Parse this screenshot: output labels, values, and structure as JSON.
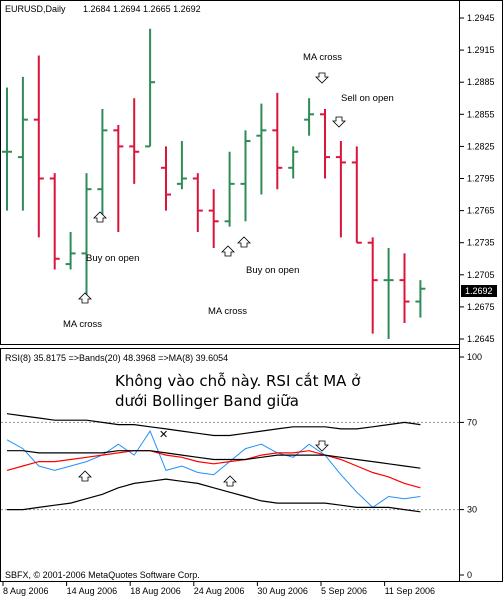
{
  "header": {
    "symbol": "EURUSD,Daily",
    "ohlc": "1.2684 1.2694 1.2665 1.2692"
  },
  "indicator": {
    "label": "RSI(8) 35.8175  =>Bands(20) 48.3968  =>MA(8) 39.6054"
  },
  "annotations": {
    "note_line1": "Không vào chỗ này. RSI cắt MA ở",
    "note_line2": "dưới Bollinger Band giữa",
    "ma_cross_1": "MA cross",
    "ma_cross_2": "MA cross",
    "ma_cross_3": "MA cross",
    "buy_on_open_1": "Buy on open",
    "buy_on_open_2": "Buy on open",
    "sell_on_open": "Sell on open"
  },
  "copyright": "SBFX, © 2001-2006 MetaQuotes Software Corp.",
  "colors": {
    "bull": "#2e8b57",
    "bear": "#dc143c",
    "rsi": "#1e90ff",
    "rsi_ma": "#ff0000",
    "bands": "#000000",
    "current_price_bg": "#000000"
  },
  "chart_data": [
    {
      "type": "ohlc",
      "title": "EURUSD,Daily",
      "current_price": "1.2692",
      "ylim": [
        1.2637,
        1.2955
      ],
      "y_ticks": [
        "1.2945",
        "1.2915",
        "1.2885",
        "1.2855",
        "1.2825",
        "1.2795",
        "1.2765",
        "1.2735",
        "1.2705",
        "1.2675",
        "1.2645"
      ],
      "x_ticks": [
        "8 Aug 2006",
        "14 Aug 2006",
        "18 Aug 2006",
        "24 Aug 2006",
        "30 Aug 2006",
        "5 Sep 2006",
        "11 Sep 2006"
      ],
      "bars": [
        {
          "o": 1.282,
          "h": 1.288,
          "l": 1.2765,
          "c": 1.282
        },
        {
          "o": 1.2815,
          "h": 1.289,
          "l": 1.2765,
          "c": 1.285
        },
        {
          "o": 1.285,
          "h": 1.291,
          "l": 1.274,
          "c": 1.2795
        },
        {
          "o": 1.2795,
          "h": 1.28,
          "l": 1.271,
          "c": 1.272
        },
        {
          "o": 1.2715,
          "h": 1.2745,
          "l": 1.271,
          "c": 1.2725
        },
        {
          "o": 1.2725,
          "h": 1.28,
          "l": 1.2685,
          "c": 1.2785
        },
        {
          "o": 1.2785,
          "h": 1.286,
          "l": 1.276,
          "c": 1.284
        },
        {
          "o": 1.284,
          "h": 1.2845,
          "l": 1.2745,
          "c": 1.2825
        },
        {
          "o": 1.2825,
          "h": 1.287,
          "l": 1.279,
          "c": 1.282
        },
        {
          "o": 1.2825,
          "h": 1.2935,
          "l": 1.2825,
          "c": 1.2885
        },
        {
          "o": 1.2805,
          "h": 1.2825,
          "l": 1.2765,
          "c": 1.278
        },
        {
          "o": 1.279,
          "h": 1.283,
          "l": 1.2785,
          "c": 1.2795
        },
        {
          "o": 1.2795,
          "h": 1.28,
          "l": 1.2745,
          "c": 1.2765
        },
        {
          "o": 1.2765,
          "h": 1.2785,
          "l": 1.273,
          "c": 1.2755
        },
        {
          "o": 1.2755,
          "h": 1.282,
          "l": 1.275,
          "c": 1.279
        },
        {
          "o": 1.279,
          "h": 1.284,
          "l": 1.2755,
          "c": 1.283
        },
        {
          "o": 1.2835,
          "h": 1.2865,
          "l": 1.278,
          "c": 1.284
        },
        {
          "o": 1.284,
          "h": 1.2875,
          "l": 1.2785,
          "c": 1.2805
        },
        {
          "o": 1.2805,
          "h": 1.2825,
          "l": 1.2795,
          "c": 1.282
        },
        {
          "o": 1.285,
          "h": 1.287,
          "l": 1.2835,
          "c": 1.2855
        },
        {
          "o": 1.2855,
          "h": 1.286,
          "l": 1.2795,
          "c": 1.2815
        },
        {
          "o": 1.2815,
          "h": 1.283,
          "l": 1.274,
          "c": 1.281
        },
        {
          "o": 1.281,
          "h": 1.2825,
          "l": 1.2735,
          "c": 1.2735
        },
        {
          "o": 1.2735,
          "h": 1.274,
          "l": 1.265,
          "c": 1.27
        },
        {
          "o": 1.27,
          "h": 1.273,
          "l": 1.2645,
          "c": 1.27
        },
        {
          "o": 1.27,
          "h": 1.2725,
          "l": 1.266,
          "c": 1.268
        },
        {
          "o": 1.268,
          "h": 1.27,
          "l": 1.2665,
          "c": 1.2692
        }
      ]
    },
    {
      "type": "line",
      "title": "RSI(8) 35.8175  =>Bands(20) 48.3968  =>MA(8) 39.6054",
      "ylim": [
        0,
        100
      ],
      "y_ticks": [
        "100",
        "70",
        "30",
        "0"
      ],
      "levels": [
        70,
        30
      ],
      "series": [
        {
          "name": "RSI(8)",
          "values": [
            62,
            58,
            50,
            48,
            50,
            52,
            55,
            60,
            55,
            66,
            48,
            50,
            47,
            46,
            52,
            58,
            60,
            56,
            54,
            60,
            55,
            46,
            38,
            31,
            36,
            35,
            36
          ]
        },
        {
          "name": "MA(8)",
          "values": [
            48,
            50,
            52,
            52,
            53,
            54,
            55,
            56,
            57,
            57,
            55,
            54,
            52,
            51,
            52,
            53,
            55,
            56,
            56,
            57,
            55,
            53,
            50,
            47,
            45,
            42,
            40
          ]
        },
        {
          "name": "Bands(20) upper",
          "values": [
            74,
            73,
            72,
            71,
            71,
            71,
            70,
            69,
            69,
            68,
            67,
            66,
            65,
            64,
            64,
            65,
            66,
            67,
            68,
            68,
            68,
            67,
            67,
            68,
            69,
            70,
            69
          ]
        },
        {
          "name": "Bands(20) middle",
          "values": [
            57,
            57,
            56,
            56,
            56,
            56,
            56,
            57,
            57,
            57,
            56,
            55,
            54,
            53,
            53,
            53,
            54,
            55,
            55,
            55,
            55,
            54,
            53,
            52,
            51,
            50,
            49
          ]
        },
        {
          "name": "Bands(20) lower",
          "values": [
            30,
            30,
            31,
            32,
            33,
            35,
            37,
            40,
            42,
            43,
            44,
            43,
            42,
            40,
            38,
            36,
            34,
            33,
            33,
            33,
            33,
            32,
            31,
            31,
            31,
            30,
            29
          ]
        }
      ]
    }
  ]
}
